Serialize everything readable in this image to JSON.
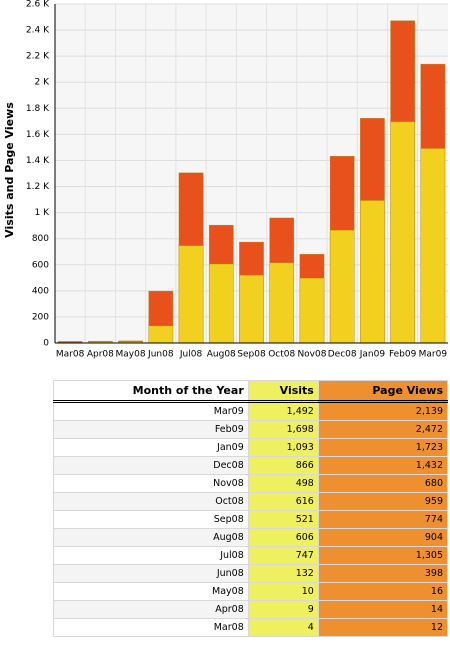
{
  "chart_data": {
    "type": "bar",
    "y_label": "Visits and Page Views",
    "categories": [
      "Mar08",
      "Apr08",
      "May08",
      "Jun08",
      "Jul08",
      "Aug08",
      "Sep08",
      "Oct08",
      "Nov08",
      "Dec08",
      "Jan09",
      "Feb09",
      "Mar09"
    ],
    "series": [
      {
        "name": "Page Views",
        "color": "#e8501c",
        "values": [
          12,
          14,
          16,
          398,
          1305,
          904,
          774,
          959,
          680,
          1432,
          1723,
          2472,
          2139
        ]
      },
      {
        "name": "Visits",
        "color": "#f2d020",
        "values": [
          4,
          9,
          10,
          132,
          747,
          606,
          521,
          616,
          498,
          866,
          1093,
          1698,
          1492
        ]
      }
    ],
    "ylim": [
      0,
      2600
    ],
    "yticks": [
      0,
      200,
      400,
      600,
      800,
      {
        "value": 1000,
        "label": "1 K"
      },
      {
        "value": 1200,
        "label": "1.2 K"
      },
      {
        "value": 1400,
        "label": "1.4 K"
      },
      {
        "value": 1600,
        "label": "1.6 K"
      },
      {
        "value": 1800,
        "label": "1.8 K"
      },
      {
        "value": 2000,
        "label": "2 K"
      },
      {
        "value": 2200,
        "label": "2.2 K"
      },
      {
        "value": 2400,
        "label": "2.4 K"
      },
      {
        "value": 2600,
        "label": "2.6 K"
      }
    ],
    "grid": true
  },
  "table": {
    "header": [
      "Month of the Year",
      "Visits",
      "Page Views"
    ],
    "rows": [
      [
        "Mar09",
        "1,492",
        "2,139"
      ],
      [
        "Feb09",
        "1,698",
        "2,472"
      ],
      [
        "Jan09",
        "1,093",
        "1,723"
      ],
      [
        "Dec08",
        "866",
        "1,432"
      ],
      [
        "Nov08",
        "498",
        "680"
      ],
      [
        "Oct08",
        "616",
        "959"
      ],
      [
        "Sep08",
        "521",
        "774"
      ],
      [
        "Aug08",
        "606",
        "904"
      ],
      [
        "Jul08",
        "747",
        "1,305"
      ],
      [
        "Jun08",
        "132",
        "398"
      ],
      [
        "May08",
        "10",
        "16"
      ],
      [
        "Apr08",
        "9",
        "14"
      ],
      [
        "Mar08",
        "4",
        "12"
      ]
    ]
  }
}
